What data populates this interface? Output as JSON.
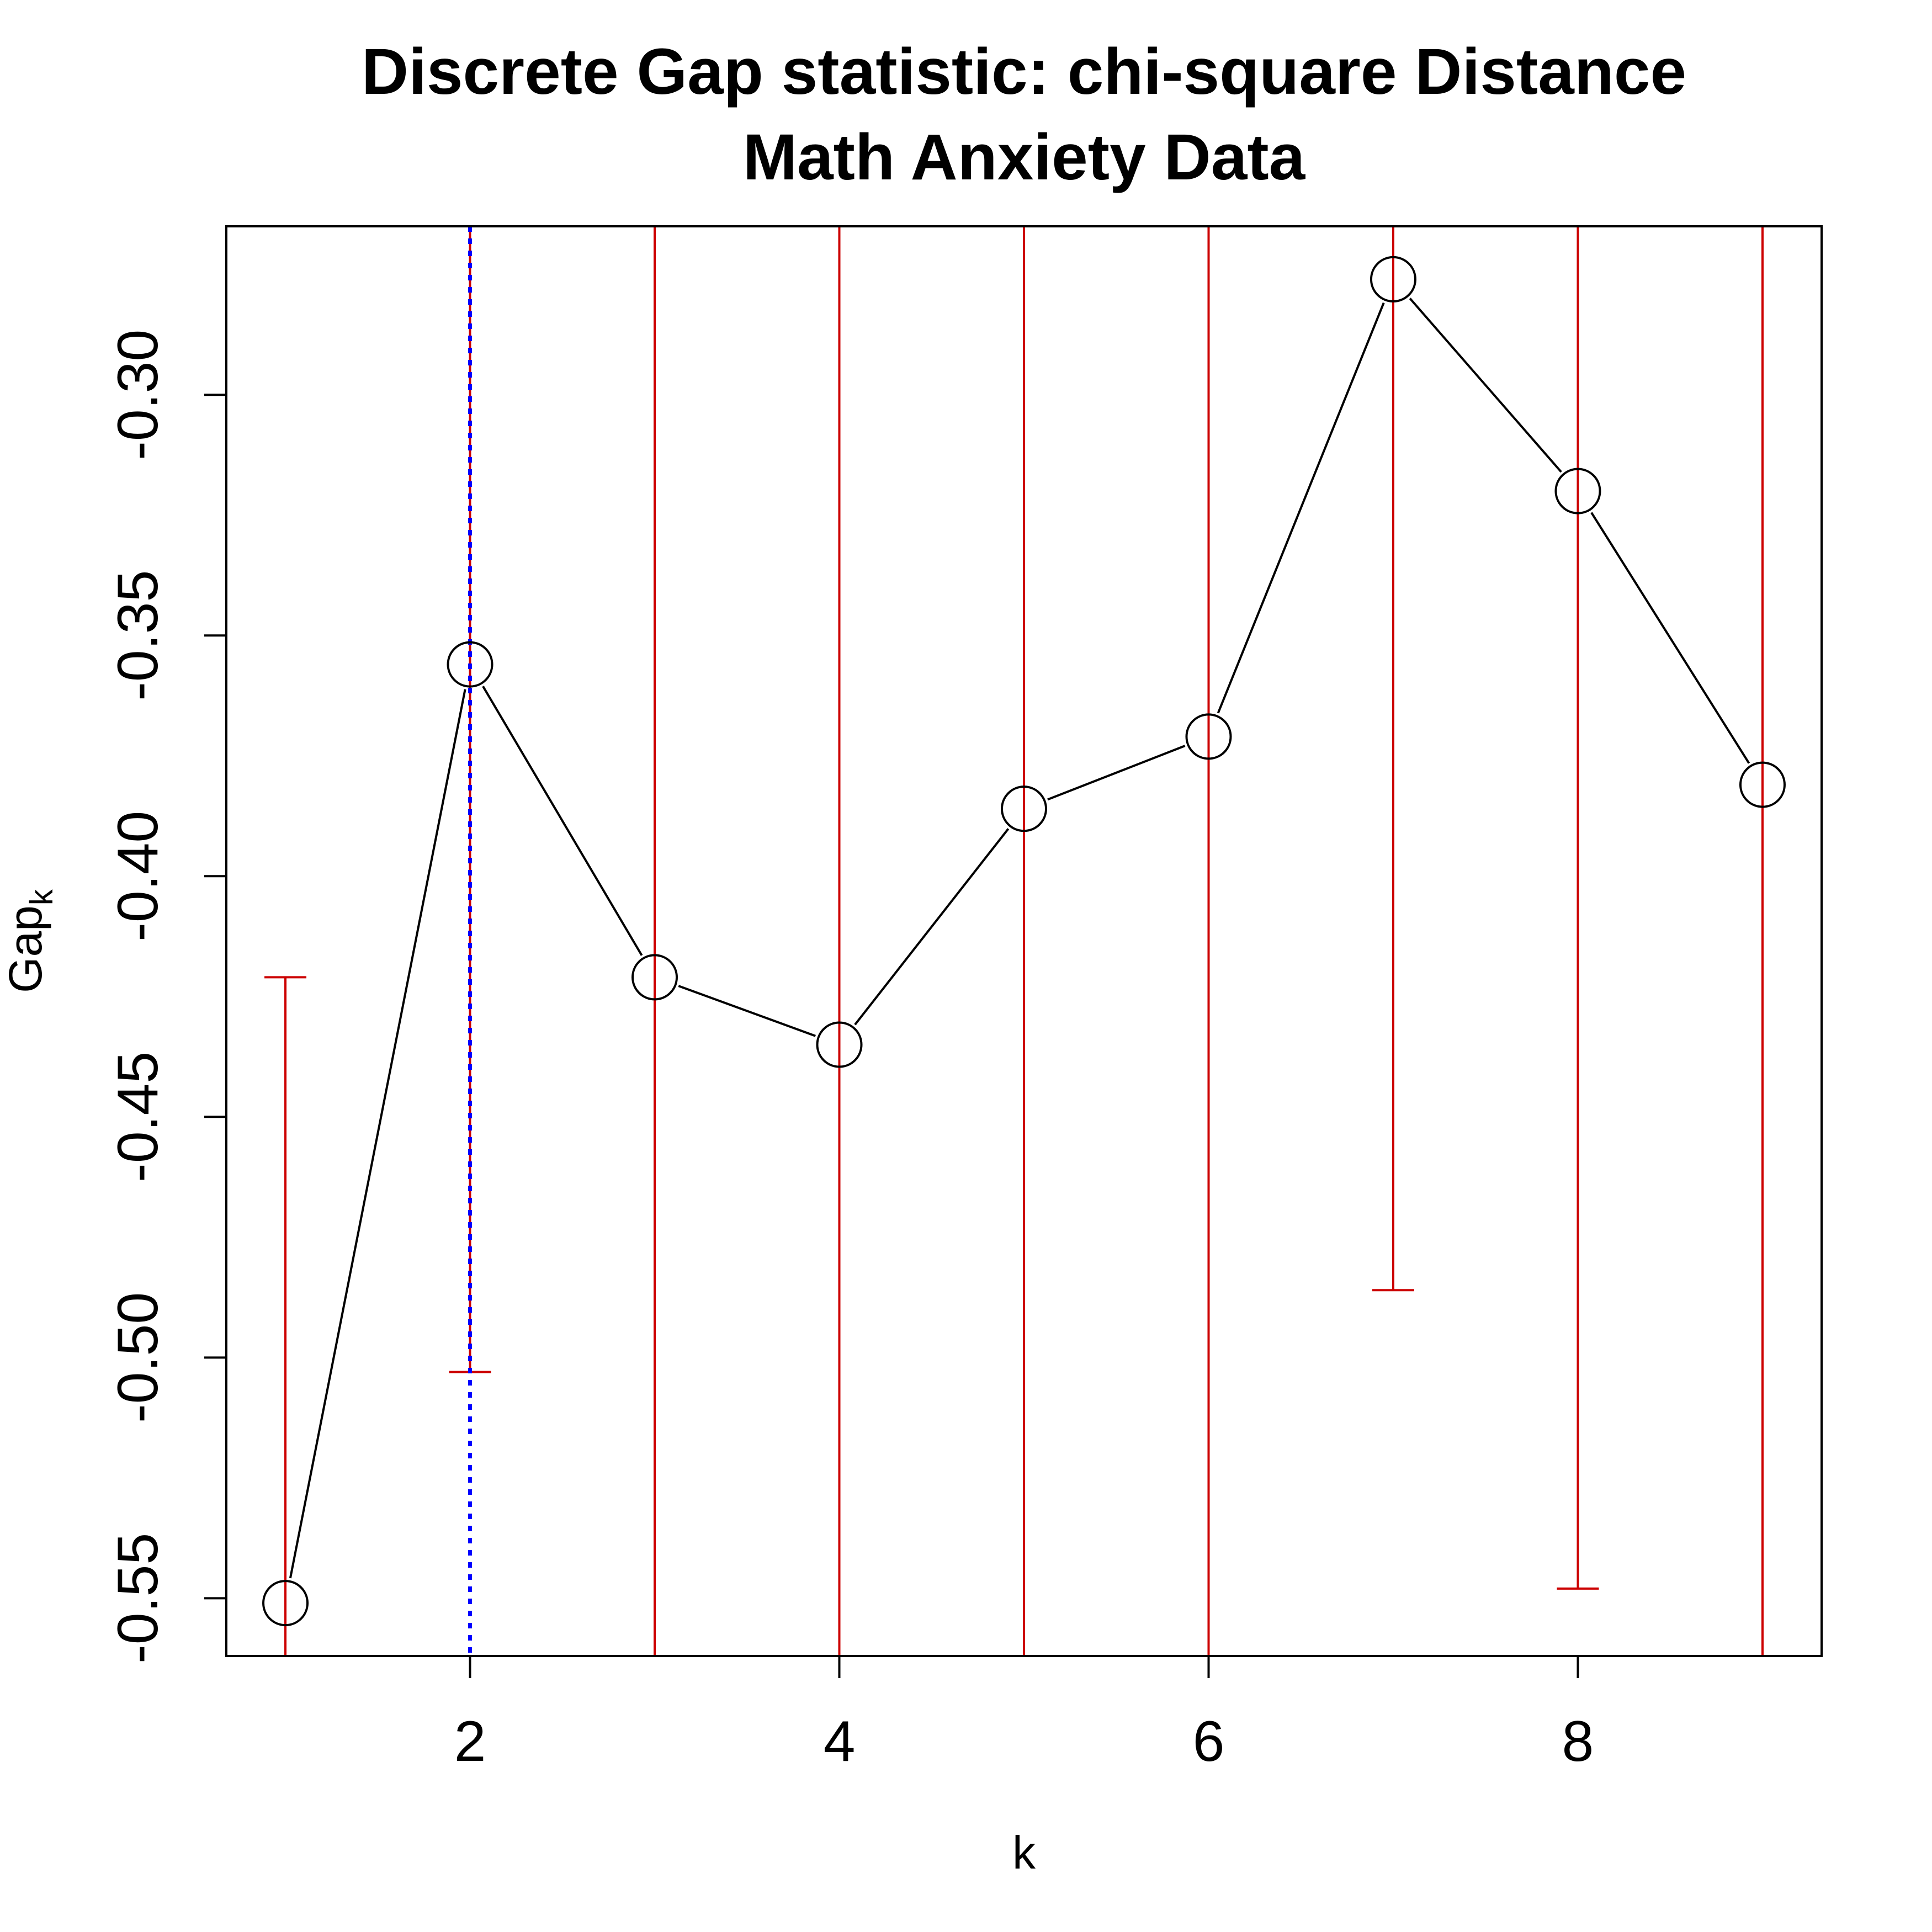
{
  "chart_data": {
    "type": "line",
    "title": "Discrete Gap statistic: chi-square Distance",
    "subtitle": "Math Anxiety Data",
    "xlabel": "k",
    "ylabel_main": "Gap",
    "ylabel_sub": "k",
    "xlim": [
      0.68,
      9.32
    ],
    "ylim": [
      -0.562,
      -0.265
    ],
    "x_ticks": [
      2,
      4,
      6,
      8
    ],
    "y_ticks": [
      -0.55,
      -0.5,
      -0.45,
      -0.4,
      -0.35,
      -0.3
    ],
    "y_tick_labels": [
      "-0.55",
      "-0.50",
      "-0.45",
      "-0.40",
      "-0.35",
      "-0.30"
    ],
    "grid": false,
    "legend": "none",
    "series": [
      {
        "x": [
          1,
          2,
          3,
          4,
          5,
          6,
          7,
          8,
          9
        ],
        "y": [
          -0.551,
          -0.356,
          -0.421,
          -0.435,
          -0.386,
          -0.371,
          -0.276,
          -0.32,
          -0.381
        ],
        "upper": [
          -0.421,
          -0.265,
          -0.265,
          -0.265,
          -0.265,
          -0.265,
          -0.265,
          -0.265,
          -0.265
        ],
        "lower": [
          -0.562,
          -0.503,
          -0.562,
          -0.562,
          -0.562,
          -0.562,
          -0.486,
          -0.548,
          -0.562
        ]
      }
    ],
    "selected_k": 2,
    "colors": {
      "line": "#000000",
      "errorbar": "#cc0000",
      "selected": "#0000ff"
    }
  }
}
